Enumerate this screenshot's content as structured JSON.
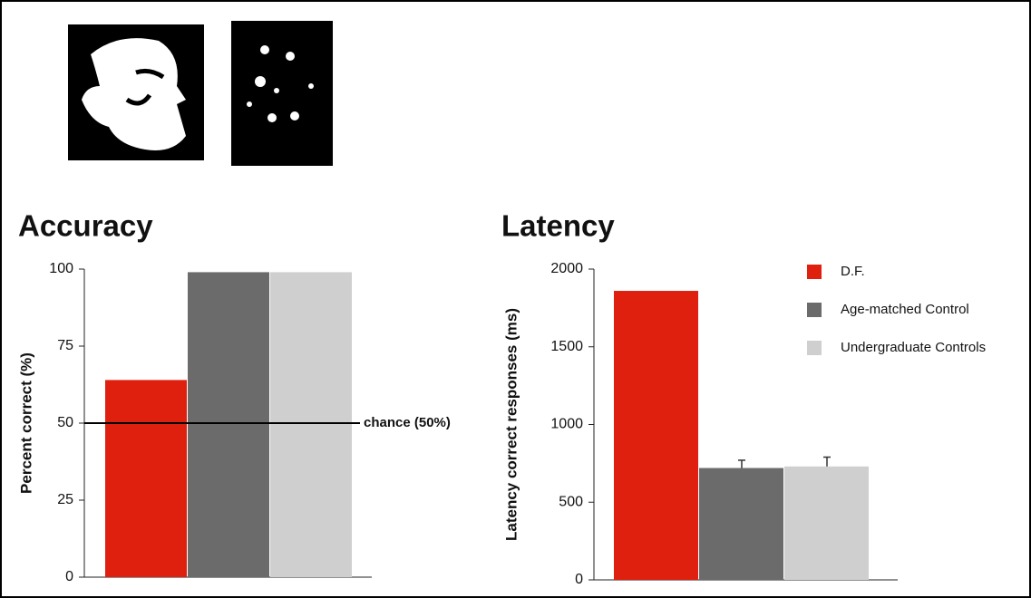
{
  "chart_data": [
    {
      "type": "bar",
      "title": "Accuracy",
      "y_label": "Percent correct (%)",
      "values": [
        64,
        99,
        99
      ],
      "colors": [
        "#e0200f",
        "#6b6b6b",
        "#cfcfcf"
      ],
      "ylim": [
        0,
        100
      ],
      "yticks": [
        0,
        25,
        50,
        75,
        100
      ],
      "reference_line": {
        "value": 50,
        "label": "chance (50%)"
      }
    },
    {
      "type": "bar",
      "title": "Latency",
      "y_label": "Latency correct responses (ms)",
      "series": [
        {
          "name": "D.F.",
          "color": "#e0200f",
          "values": [
            1860
          ]
        },
        {
          "name": "Age-matched Control",
          "color": "#6b6b6b",
          "values": [
            720
          ],
          "errors": [
            50
          ]
        },
        {
          "name": "Undergraduate Controls",
          "color": "#cfcfcf",
          "values": [
            730
          ],
          "errors": [
            60
          ]
        }
      ],
      "ylim": [
        0,
        2000
      ],
      "yticks": [
        0,
        500,
        1000,
        1500,
        2000
      ],
      "legend": "upper right"
    }
  ]
}
